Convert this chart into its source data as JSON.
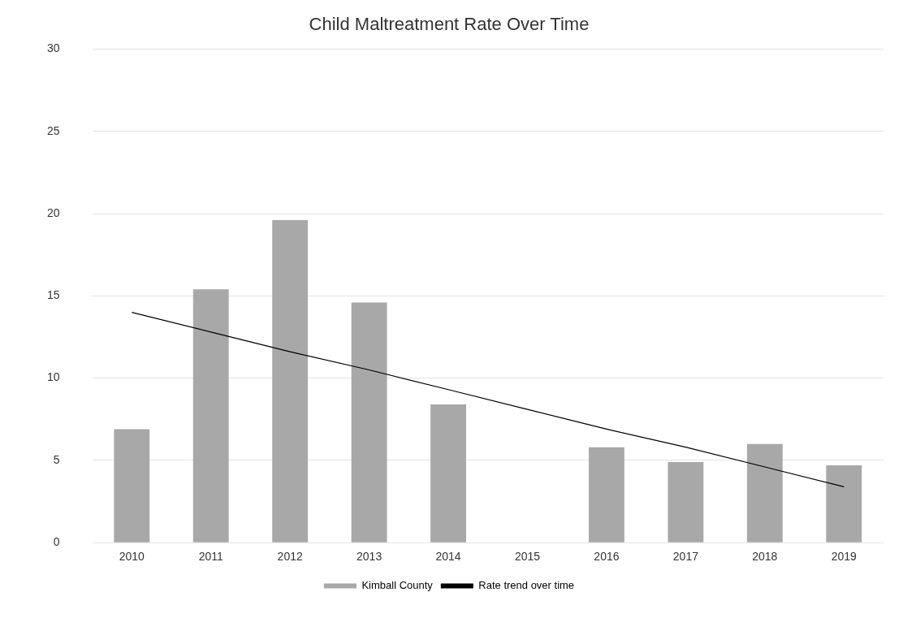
{
  "chart_data": {
    "type": "bar",
    "title": "Child Maltreatment Rate Over Time",
    "categories": [
      "2010",
      "2011",
      "2012",
      "2013",
      "2014",
      "2015",
      "2016",
      "2017",
      "2018",
      "2019"
    ],
    "series": [
      {
        "name": "Kimball County",
        "color": "#a8a8a8",
        "values": [
          6.9,
          15.4,
          19.6,
          14.6,
          8.4,
          null,
          5.8,
          4.9,
          6.0,
          4.7
        ]
      },
      {
        "name": "Rate trend over time",
        "type": "line",
        "color": "#000000",
        "values": [
          14.0,
          12.8,
          11.6,
          10.5,
          9.3,
          8.1,
          6.9,
          5.8,
          4.6,
          3.4
        ]
      }
    ],
    "ylim": [
      0,
      30
    ],
    "yticks": [
      0,
      5,
      10,
      15,
      20,
      25,
      30
    ],
    "grid": "y",
    "legend": "bottom",
    "marker": "none"
  }
}
